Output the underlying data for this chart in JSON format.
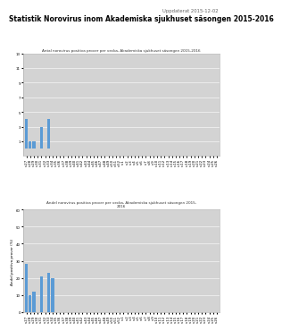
{
  "updated_text": "Uppdaterat 2015-12-02",
  "main_title": "Statistik Norovirus inom Akademiska sjukhuset säsongen 2015-2016",
  "chart1_title": "Antal norovirus positiva prover per vecka, Akademiska sjukhuset säsongen 2015-2016",
  "chart2_title": "Andel norovirus positiva prover per vecka, Akademiska sjukhuset säsongen 2015-\n2016",
  "chart2_ylabel": "Andel positiva prover (%)",
  "weeks": [
    "v.27",
    "v.28",
    "v.29",
    "v.30",
    "v.31",
    "v.32",
    "v.33",
    "v.34",
    "v.35",
    "v.36",
    "v.37",
    "v.38",
    "v.39",
    "v.40",
    "v.41",
    "v.42",
    "v.43",
    "v.44",
    "v.45",
    "v.46",
    "v.47",
    "v.48",
    "v.49",
    "v.50",
    "v.51",
    "v.52",
    "v.1",
    "v.2",
    "v.3",
    "v.4",
    "v.5",
    "v.6",
    "v.7",
    "v.8",
    "v.9",
    "v.10",
    "v.11",
    "v.12",
    "v.13",
    "v.14",
    "v.15",
    "v.16",
    "v.17",
    "v.18",
    "v.19",
    "v.20",
    "v.21",
    "v.22",
    "v.23",
    "v.24",
    "v.25",
    "v.26"
  ],
  "counts": [
    4,
    1,
    1,
    0,
    3,
    0,
    4,
    0,
    0,
    0,
    0,
    0,
    0,
    0,
    0,
    0,
    0,
    0,
    0,
    0,
    0,
    0,
    0,
    0,
    0,
    0,
    0,
    0,
    0,
    0,
    0,
    0,
    0,
    0,
    0,
    0,
    0,
    0,
    0,
    0,
    0,
    0,
    0,
    0,
    0,
    0,
    0,
    0,
    0,
    0,
    0,
    0
  ],
  "percents": [
    28,
    10,
    12,
    0,
    21,
    0,
    23,
    20,
    0,
    0,
    0,
    0,
    0,
    0,
    0,
    0,
    0,
    0,
    0,
    0,
    0,
    0,
    0,
    0,
    0,
    0,
    0,
    0,
    0,
    0,
    0,
    0,
    0,
    0,
    0,
    0,
    0,
    0,
    0,
    0,
    0,
    0,
    0,
    0,
    0,
    0,
    0,
    0,
    0,
    0,
    0,
    0
  ],
  "bar_color": "#5B9BD5",
  "chart_bg": "#D3D3D3",
  "fig_bg": "#FFFFFF",
  "border_color": "#AAAAAA",
  "count_ylim": [
    -1,
    13
  ],
  "count_yticks": [
    1,
    3,
    5,
    7,
    9,
    11,
    13
  ],
  "percent_ylim": [
    0,
    60
  ],
  "percent_yticks": [
    0,
    10,
    20,
    30,
    40,
    50,
    60
  ],
  "chart1_title_fontsize": 3.0,
  "chart2_title_fontsize": 3.0,
  "ylabel_fontsize": 3.0,
  "tick_fontsize": 2.8,
  "updated_fontsize": 3.8,
  "main_title_fontsize": 5.5
}
